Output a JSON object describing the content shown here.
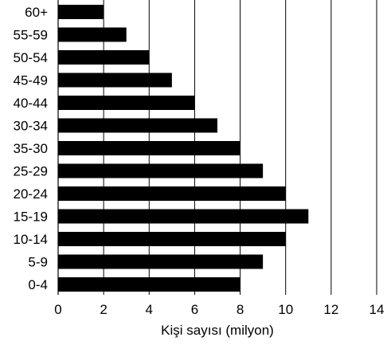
{
  "chart_data": {
    "type": "bar",
    "orientation": "horizontal",
    "categories": [
      "60+",
      "55-59",
      "50-54",
      "45-49",
      "40-44",
      "30-34",
      "35-30",
      "25-29",
      "20-24",
      "15-19",
      "10-14",
      "5-9",
      "0-4"
    ],
    "values": [
      2,
      3,
      4,
      5,
      6,
      7,
      8,
      9,
      10,
      11,
      10,
      9,
      8
    ],
    "title": "",
    "xlabel": "Kişi sayısı (milyon)",
    "ylabel": "",
    "xlim": [
      0,
      14
    ],
    "xticks": [
      "0",
      "2",
      "4",
      "6",
      "8",
      "10",
      "12",
      "14"
    ],
    "grid": "vertical",
    "legend": "none",
    "bar_color": "#000000"
  }
}
